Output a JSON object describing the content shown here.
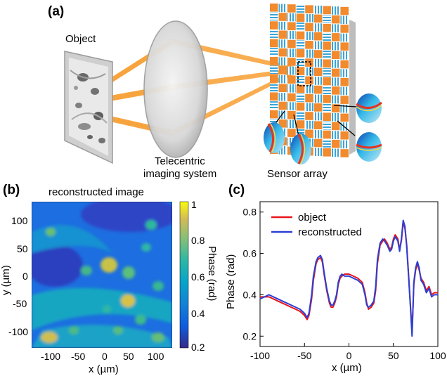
{
  "panels": {
    "a": "(a)",
    "b": "(b)",
    "c": "(c)"
  },
  "schematic": {
    "object_label": "Object",
    "lens_label_line1": "Telecentric",
    "lens_label_line2": "imaging system",
    "sensor_label": "Sensor array"
  },
  "image_panel": {
    "title": "reconstructed image",
    "xlabel": "x (µm)",
    "ylabel": "y (µm)",
    "x_ticks": [
      "-100",
      "-50",
      "0",
      "50",
      "100"
    ],
    "y_ticks": [
      "100",
      "50",
      "0",
      "-50",
      "-100"
    ],
    "colorbar": {
      "label": "Phase (rad)",
      "ticks": [
        "1",
        "0.8",
        "0.6",
        "0.4",
        "0.2"
      ],
      "range": [
        0.2,
        1.0
      ],
      "colormap": "parula"
    }
  },
  "chart_data": {
    "type": "line",
    "title": "",
    "xlabel": "x (µm)",
    "ylabel": "Phase (rad)",
    "xlim": [
      -100,
      100
    ],
    "ylim": [
      0.15,
      0.85
    ],
    "x_ticks": [
      "-100",
      "-50",
      "0",
      "50",
      "100"
    ],
    "y_ticks": [
      "0.8",
      "0.6",
      "0.4",
      "0.2"
    ],
    "legend_position": "top-left",
    "series": [
      {
        "name": "object",
        "color": "#e8141b",
        "x": [
          -100,
          -95,
          -90,
          -85,
          -80,
          -75,
          -70,
          -65,
          -60,
          -55,
          -50,
          -47,
          -45,
          -42,
          -40,
          -37,
          -35,
          -32,
          -30,
          -28,
          -25,
          -22,
          -20,
          -18,
          -16,
          -14,
          -12,
          -10,
          -8,
          -5,
          0,
          5,
          10,
          15,
          18,
          20,
          22,
          25,
          28,
          30,
          32,
          35,
          38,
          40,
          43,
          46,
          48,
          50,
          52,
          55,
          57,
          59,
          61,
          63,
          65,
          67,
          69,
          71,
          73,
          75,
          77,
          79,
          81,
          84,
          87,
          90,
          93,
          96,
          100
        ],
        "y": [
          0.39,
          0.39,
          0.39,
          0.38,
          0.37,
          0.36,
          0.35,
          0.34,
          0.33,
          0.32,
          0.3,
          0.28,
          0.3,
          0.38,
          0.47,
          0.55,
          0.57,
          0.58,
          0.56,
          0.5,
          0.42,
          0.36,
          0.34,
          0.34,
          0.36,
          0.39,
          0.45,
          0.48,
          0.49,
          0.5,
          0.5,
          0.49,
          0.48,
          0.46,
          0.41,
          0.36,
          0.33,
          0.34,
          0.36,
          0.42,
          0.55,
          0.64,
          0.66,
          0.67,
          0.65,
          0.62,
          0.63,
          0.67,
          0.69,
          0.67,
          0.62,
          0.66,
          0.75,
          0.72,
          0.64,
          0.5,
          0.36,
          0.22,
          0.45,
          0.52,
          0.55,
          0.52,
          0.48,
          0.46,
          0.42,
          0.44,
          0.4,
          0.41,
          0.41
        ]
      },
      {
        "name": "reconstructed",
        "color": "#2a3fd6",
        "x": [
          -100,
          -95,
          -90,
          -85,
          -80,
          -75,
          -70,
          -65,
          -60,
          -55,
          -50,
          -47,
          -45,
          -42,
          -40,
          -37,
          -35,
          -32,
          -30,
          -28,
          -25,
          -22,
          -20,
          -18,
          -16,
          -14,
          -12,
          -10,
          -8,
          -5,
          0,
          5,
          10,
          15,
          18,
          20,
          22,
          25,
          28,
          30,
          32,
          35,
          38,
          40,
          43,
          46,
          48,
          50,
          52,
          55,
          57,
          59,
          61,
          63,
          65,
          67,
          69,
          71,
          73,
          75,
          77,
          79,
          81,
          84,
          87,
          90,
          93,
          96,
          100
        ],
        "y": [
          0.38,
          0.39,
          0.4,
          0.39,
          0.38,
          0.37,
          0.36,
          0.35,
          0.34,
          0.33,
          0.31,
          0.29,
          0.31,
          0.4,
          0.49,
          0.56,
          0.58,
          0.59,
          0.57,
          0.51,
          0.43,
          0.37,
          0.35,
          0.35,
          0.37,
          0.4,
          0.46,
          0.49,
          0.5,
          0.49,
          0.49,
          0.48,
          0.47,
          0.45,
          0.4,
          0.35,
          0.34,
          0.35,
          0.37,
          0.44,
          0.57,
          0.65,
          0.67,
          0.66,
          0.64,
          0.61,
          0.62,
          0.66,
          0.68,
          0.66,
          0.61,
          0.67,
          0.76,
          0.73,
          0.63,
          0.49,
          0.35,
          0.2,
          0.46,
          0.53,
          0.56,
          0.53,
          0.47,
          0.45,
          0.41,
          0.43,
          0.39,
          0.4,
          0.4
        ]
      }
    ]
  }
}
